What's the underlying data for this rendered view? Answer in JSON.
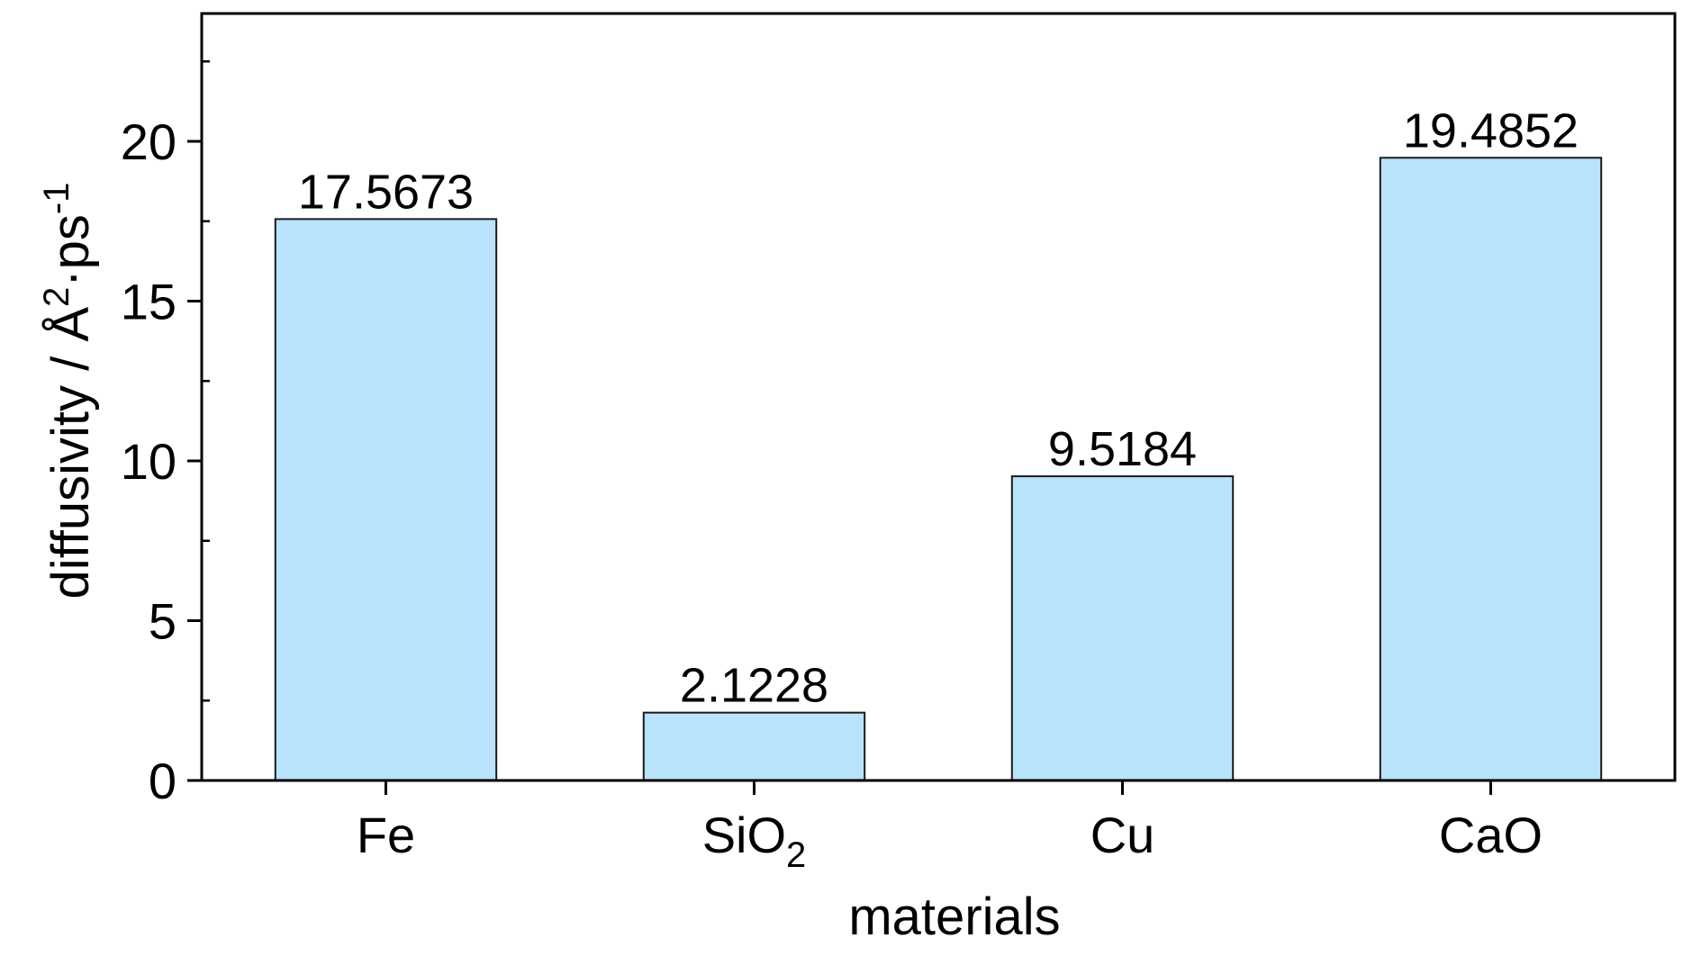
{
  "chart_data": {
    "type": "bar",
    "categories": [
      {
        "base": "Fe",
        "sub": ""
      },
      {
        "base": "SiO",
        "sub": "2"
      },
      {
        "base": "Cu",
        "sub": ""
      },
      {
        "base": "CaO",
        "sub": ""
      }
    ],
    "values": [
      17.5673,
      2.1228,
      9.5184,
      19.4852
    ],
    "data_labels": [
      "17.5673",
      "2.1228",
      "9.5184",
      "19.4852"
    ],
    "xlabel": "materials",
    "ylabel": {
      "prefix": "diffusivity / Å",
      "sup1": "2",
      "mid": "·ps",
      "sup2": "-1"
    },
    "ylim": [
      0,
      24
    ],
    "yticks": [
      0,
      5,
      10,
      15,
      20
    ],
    "ytick_labels": [
      "0",
      "5",
      "10",
      "15",
      "20"
    ],
    "minor_tick_step": 2.5,
    "grid": false,
    "legend": "none",
    "bar_color": "#b8e3fb",
    "bar_edge_color": "#1a1a1a",
    "axis_color": "#000000"
  }
}
